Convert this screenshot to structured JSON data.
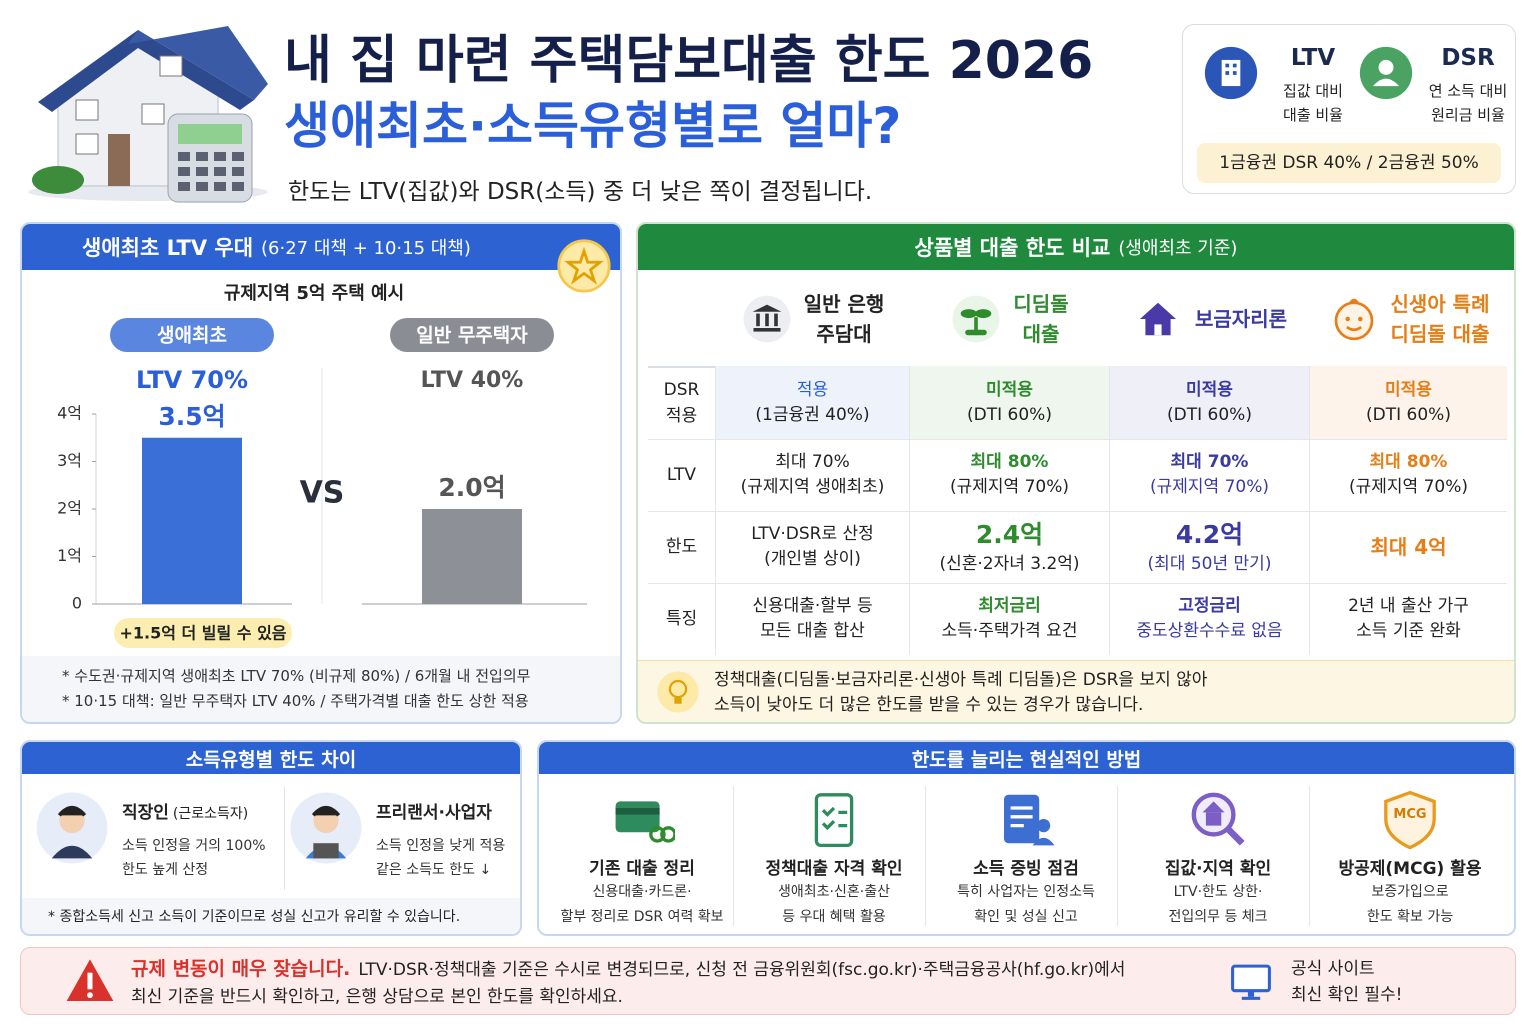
{
  "header": {
    "title_line1": "내 집 마련 주택담보대출 한도 2026",
    "title_line2": "생애최초·소득유형별로 얼마?",
    "subtitle": "한도는 LTV(집값)와 DSR(소득) 중 더 낮은 쪽이 결정됩니다."
  },
  "terms": {
    "items": [
      {
        "name": "LTV",
        "desc": [
          "집값 대비",
          "대출 비율"
        ]
      },
      {
        "name": "DSR",
        "desc": [
          "연 소득 대비",
          "원리금 비율"
        ]
      }
    ],
    "note": "1금융권 DSR 40% / 2금융권 50%"
  },
  "chart_data": {
    "type": "bar",
    "title": "생애최초 LTV 우대",
    "subtitle": "(6·27 대책 + 10·15 대책)",
    "example": "규제지역 5억 주택 예시",
    "categories": [
      "생애최초",
      "일반 무주택자"
    ],
    "ltv_labels": [
      "LTV 70%",
      "LTV 40%"
    ],
    "values": [
      3.5,
      2.0
    ],
    "value_labels": [
      "3.5억",
      "2.0억"
    ],
    "colors": [
      "#3a6fd8",
      "#8d9097"
    ],
    "ylim": [
      0,
      4
    ],
    "yticks": [
      0,
      {
        "value": 1,
        "label": "1억"
      },
      {
        "value": 2,
        "label": "2억"
      },
      {
        "value": 3,
        "label": "3억"
      },
      {
        "value": 4,
        "label": "4억"
      }
    ],
    "grid": false,
    "vs_label": "VS",
    "annotation": "+1.5억 더 빌릴 수 있음",
    "notes": [
      "* 수도권·규제지역 생애최초 LTV 70% (비규제 80%) / 6개월 내 전입의무",
      "* 10·15 대책: 일반 무주택자 LTV 40% / 주택가격별 대출 한도 상한 적용"
    ]
  },
  "comparison": {
    "title": "상품별 대출 한도 비교",
    "title_note": "(생애최초 기준)",
    "products": [
      [
        "일반 은행",
        "주담대"
      ],
      [
        "디딤돌",
        "대출"
      ],
      [
        "보금자리론"
      ],
      [
        "신생아 특례",
        "디딤돌 대출"
      ]
    ],
    "rows": [
      {
        "label": [
          "DSR",
          "적용"
        ],
        "cells": [
          [
            "적용",
            "(1금융권 40%)"
          ],
          [
            "미적용",
            "(DTI 60%)"
          ],
          [
            "미적용",
            "(DTI 60%)"
          ],
          [
            "미적용",
            "(DTI 60%)"
          ]
        ]
      },
      {
        "label": [
          "LTV"
        ],
        "cells": [
          [
            "최대 70%",
            "(규제지역 생애최초)"
          ],
          [
            "최대 80%",
            "(규제지역 70%)"
          ],
          [
            "최대 70%",
            "(규제지역 70%)"
          ],
          [
            "최대 80%",
            "(규제지역 70%)"
          ]
        ]
      },
      {
        "label": [
          "한도"
        ],
        "cells": [
          [
            "LTV·DSR로 산정",
            "(개인별 상이)"
          ],
          [
            "2.4억",
            "(신혼·2자녀 3.2억)"
          ],
          [
            "4.2억",
            "(최대 50년 만기)"
          ],
          [
            "최대 4억"
          ]
        ]
      },
      {
        "label": [
          "특징"
        ],
        "cells": [
          [
            "신용대출·할부 등",
            "모든 대출 합산"
          ],
          [
            "최저금리",
            "소득·주택가격 요건"
          ],
          [
            "고정금리",
            "중도상환수수료 없음"
          ],
          [
            "2년 내 출산 가구",
            "소득 기준 완화"
          ]
        ]
      }
    ],
    "tip": [
      "정책대출(디딤돌·보금자리론·신생아 특례 디딤돌)은 DSR을 보지 않아",
      "소득이 낮아도 더 많은 한도를 받을 수 있는 경우가 많습니다."
    ]
  },
  "income": {
    "title": "소득유형별 한도 차이",
    "types": [
      {
        "name": "직장인",
        "name_note": "(근로소득자)",
        "desc": [
          "소득 인정을 거의 100%",
          "한도 높게 산정"
        ]
      },
      {
        "name": "프리랜서·사업자",
        "desc": [
          "소득 인정을 낮게 적용",
          "같은 소득도 한도 ↓"
        ]
      }
    ],
    "note": "* 종합소득세 신고 소득이 기준이므로 성실 신고가 유리할 수 있습니다."
  },
  "methods": {
    "title": "한도를 늘리는 현실적인 방법",
    "items": [
      {
        "title": "기존 대출 정리",
        "desc": [
          "신용대출·카드론·",
          "할부 정리로 DSR 여력 확보"
        ]
      },
      {
        "title": "정책대출 자격 확인",
        "desc": [
          "생애최초·신혼·출산",
          "등 우대 혜택 활용"
        ]
      },
      {
        "title": "소득 증빙 점검",
        "desc": [
          "특히 사업자는 인정소득",
          "확인 및 성실 신고"
        ]
      },
      {
        "title": "집값·지역 확인",
        "desc": [
          "LTV·한도 상한·",
          "전입의무 등 체크"
        ]
      },
      {
        "title": "방공제(MCG) 활용",
        "desc": [
          "보증가입으로",
          "한도 확보 가능"
        ],
        "badge": "MCG"
      }
    ]
  },
  "warning": {
    "bold": "규제 변동이 매우 잦습니다.",
    "text": [
      "LTV·DSR·정책대출 기준은 수시로 변경되므로, 신청 전 금융위원회(fsc.go.kr)·주택금융공사(hf.go.kr)에서",
      "최신 기준을 반드시 확인하고, 은행 상담으로 본인 한도를 확인하세요."
    ],
    "side": [
      "공식 사이트",
      "최신 확인 필수!"
    ]
  }
}
